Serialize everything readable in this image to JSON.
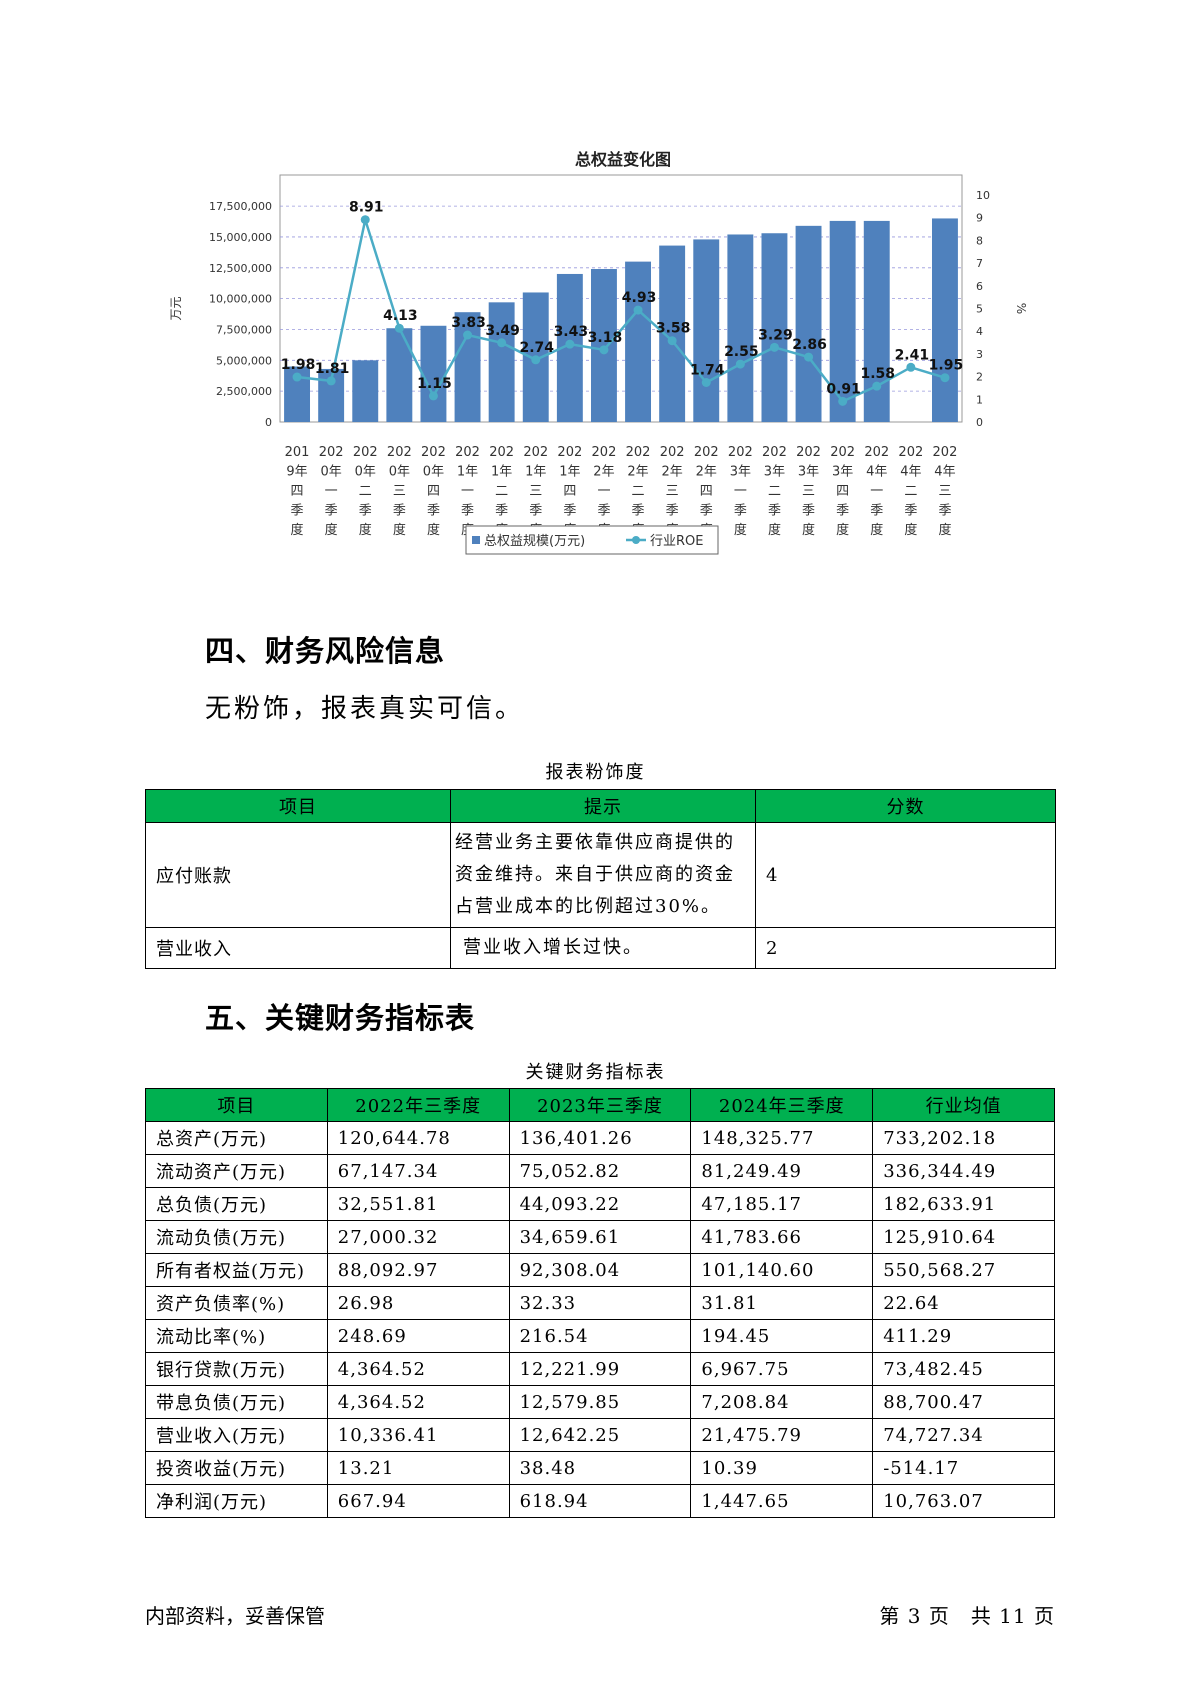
{
  "chart_data": {
    "type": "bar",
    "title": "总权益变化图",
    "ylabel": "万元",
    "y2label": "%",
    "ylim": [
      0,
      18400000
    ],
    "y2lim": [
      0,
      10
    ],
    "y_ticks": [
      "0",
      "2,500,000",
      "5,000,000",
      "7,500,000",
      "10,000,000",
      "12,500,000",
      "15,000,000",
      "17,500,000"
    ],
    "y2_ticks": [
      "0",
      "1",
      "2",
      "3",
      "4",
      "5",
      "6",
      "7",
      "8",
      "9",
      "10"
    ],
    "categories": [
      "2019年四季度",
      "2020年一季度",
      "2020年二季度",
      "2020年三季度",
      "2020年四季度",
      "2021年一季度",
      "2021年二季度",
      "2021年三季度",
      "2021年四季度",
      "2022年一季度",
      "2022年二季度",
      "2022年三季度",
      "2022年四季度",
      "2023年一季度",
      "2023年二季度",
      "2023年三季度",
      "2023年四季度",
      "2024年一季度",
      "2024年二季度",
      "2024年三季度"
    ],
    "category_lines": [
      [
        "201",
        "9年",
        "四",
        "季",
        "度"
      ],
      [
        "202",
        "0年",
        "一",
        "季",
        "度"
      ],
      [
        "202",
        "0年",
        "二",
        "季",
        "度"
      ],
      [
        "202",
        "0年",
        "三",
        "季",
        "度"
      ],
      [
        "202",
        "0年",
        "四",
        "季",
        "度"
      ],
      [
        "202",
        "1年",
        "一",
        "季",
        "度"
      ],
      [
        "202",
        "1年",
        "二",
        "季",
        "度"
      ],
      [
        "202",
        "1年",
        "三",
        "季",
        "度"
      ],
      [
        "202",
        "1年",
        "四",
        "季",
        "度"
      ],
      [
        "202",
        "2年",
        "一",
        "季",
        "度"
      ],
      [
        "202",
        "2年",
        "二",
        "季",
        "度"
      ],
      [
        "202",
        "2年",
        "三",
        "季",
        "度"
      ],
      [
        "202",
        "2年",
        "四",
        "季",
        "度"
      ],
      [
        "202",
        "3年",
        "一",
        "季",
        "度"
      ],
      [
        "202",
        "3年",
        "二",
        "季",
        "度"
      ],
      [
        "202",
        "3年",
        "三",
        "季",
        "度"
      ],
      [
        "202",
        "3年",
        "四",
        "季",
        "度"
      ],
      [
        "202",
        "4年",
        "一",
        "季",
        "度"
      ],
      [
        "202",
        "4年",
        "二",
        "季",
        "度"
      ],
      [
        "202",
        "4年",
        "三",
        "季",
        "度"
      ]
    ],
    "series": [
      {
        "name": "总权益规模(万元)",
        "type": "bar",
        "axis": "left",
        "color": "#4f81bd",
        "values": [
          4500000,
          4300000,
          5000000,
          7600000,
          7800000,
          8900000,
          9700000,
          10500000,
          12000000,
          12400000,
          13000000,
          14300000,
          14800000,
          15200000,
          15300000,
          15900000,
          16300000,
          16300000,
          null,
          16500000
        ]
      },
      {
        "name": "行业ROE",
        "type": "line",
        "axis": "right",
        "color": "#4bacc6",
        "values": [
          1.98,
          1.81,
          8.91,
          4.13,
          1.15,
          3.83,
          3.49,
          2.74,
          3.43,
          3.18,
          4.93,
          3.58,
          1.74,
          2.55,
          3.29,
          2.86,
          0.91,
          1.58,
          2.41,
          1.95
        ],
        "labels": [
          "1.98",
          "1.81",
          "8.91",
          "4.13",
          "1.15",
          "3.83",
          "3.49",
          "2.74",
          "3.43",
          "3.18",
          "4.93",
          "3.58",
          "1.74",
          "2.55",
          "3.29",
          "2.86",
          "0.91",
          "1.58",
          "2.41",
          "1.95"
        ]
      }
    ],
    "grid": true,
    "legend": "bottom"
  },
  "section4": {
    "heading": "四、财务风险信息",
    "text": "无粉饰，报表真实可信。",
    "table_caption": "报表粉饰度",
    "headers": [
      "项目",
      "提示",
      "分数"
    ],
    "rows": [
      {
        "item": "应付账款",
        "tip": "经营业务主要依靠供应商提供的资金维持。来自于供应商的资金占营业成本的比例超过30%。",
        "score": "4"
      },
      {
        "item": "营业收入",
        "tip": "营业收入增长过快。",
        "score": "2"
      }
    ]
  },
  "section5": {
    "heading": "五、关键财务指标表",
    "table_caption": "关键财务指标表",
    "headers": [
      "项目",
      "2022年三季度",
      "2023年三季度",
      "2024年三季度",
      "行业均值"
    ],
    "rows": [
      [
        "总资产(万元)",
        "120,644.78",
        "136,401.26",
        "148,325.77",
        "733,202.18"
      ],
      [
        "流动资产(万元)",
        "67,147.34",
        "75,052.82",
        "81,249.49",
        "336,344.49"
      ],
      [
        "总负债(万元)",
        "32,551.81",
        "44,093.22",
        "47,185.17",
        "182,633.91"
      ],
      [
        "流动负债(万元)",
        "27,000.32",
        "34,659.61",
        "41,783.66",
        "125,910.64"
      ],
      [
        "所有者权益(万元)",
        "88,092.97",
        "92,308.04",
        "101,140.60",
        "550,568.27"
      ],
      [
        "资产负债率(%)",
        "26.98",
        "32.33",
        "31.81",
        "22.64"
      ],
      [
        "流动比率(%)",
        "248.69",
        "216.54",
        "194.45",
        "411.29"
      ],
      [
        "银行贷款(万元)",
        "4,364.52",
        "12,221.99",
        "6,967.75",
        "73,482.45"
      ],
      [
        "带息负债(万元)",
        "4,364.52",
        "12,579.85",
        "7,208.84",
        "88,700.47"
      ],
      [
        "营业收入(万元)",
        "10,336.41",
        "12,642.25",
        "21,475.79",
        "74,727.34"
      ],
      [
        "投资收益(万元)",
        "13.21",
        "38.48",
        "10.39",
        "-514.17"
      ],
      [
        "净利润(万元)",
        "667.94",
        "618.94",
        "1,447.65",
        "10,763.07"
      ]
    ]
  },
  "footer": {
    "left": "内部资料，妥善保管",
    "right": "第 3 页　共 11 页"
  }
}
